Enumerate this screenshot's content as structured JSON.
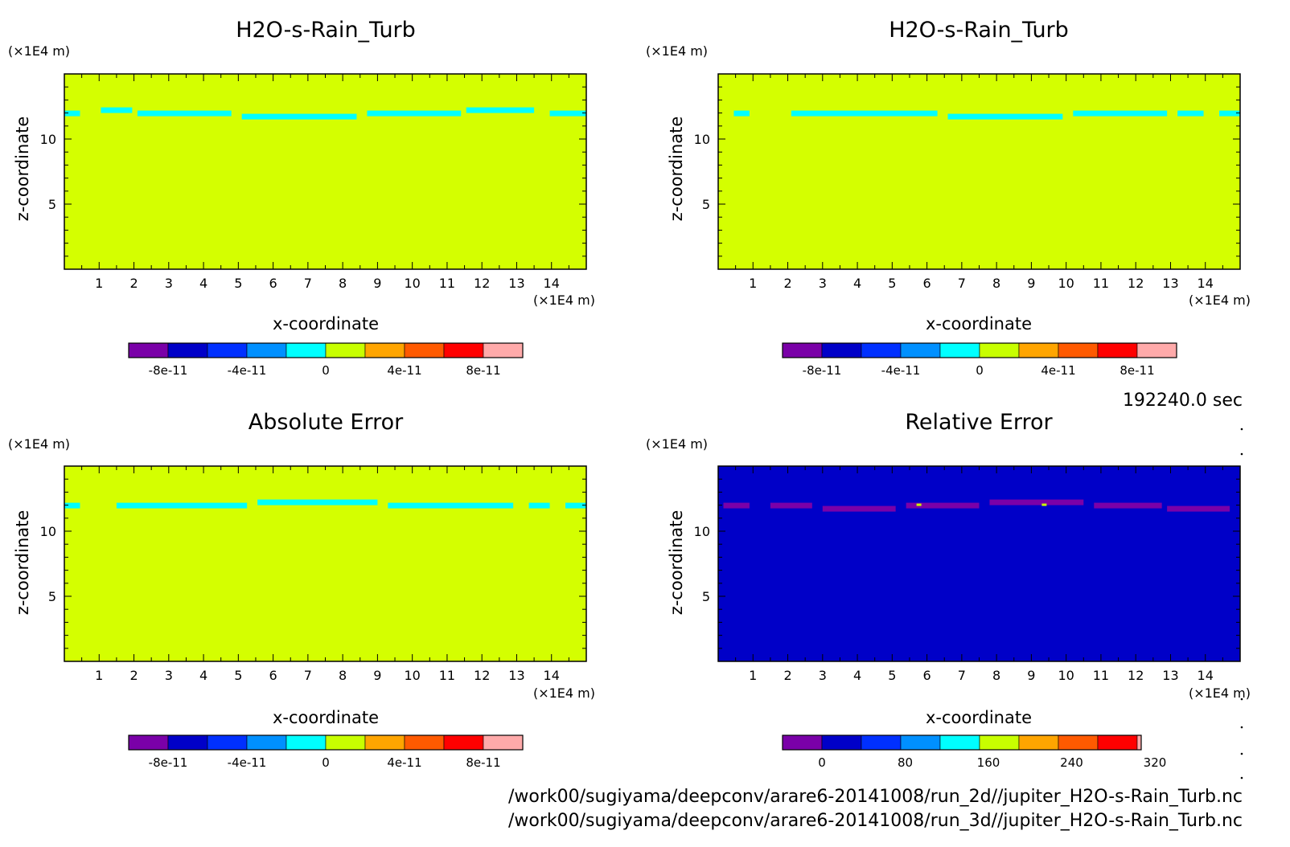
{
  "colors": {
    "background": "#d4ff00",
    "cloud": "#00ffff",
    "relative_background": "#0000c8",
    "relative_cloud": "#7a00a8",
    "colorbar": [
      "#7a00a8",
      "#0000c8",
      "#0030ff",
      "#0090ff",
      "#00ffff",
      "#c8ff00",
      "#ffa500",
      "#ff5a00",
      "#ff0000",
      "#ffaaaa"
    ]
  },
  "chart_data": [
    {
      "type": "heatmap",
      "title": "H2O-s-Rain_Turb",
      "xlabel": "x-coordinate",
      "ylabel": "z-coordinate",
      "xunit": "(×1E4 m)",
      "zunit": "(×1E4 m)",
      "xlim": [
        0,
        15
      ],
      "ylim": [
        0,
        15
      ],
      "xticks": [
        "1",
        "2",
        "3",
        "4",
        "5",
        "6",
        "7",
        "8",
        "9",
        "10",
        "11",
        "12",
        "13",
        "14"
      ],
      "yticks": [
        "5",
        "10"
      ],
      "band_z": 12,
      "colorbar_labels": [
        "-8e-11",
        "-4e-11",
        "0",
        "4e-11",
        "8e-11"
      ]
    },
    {
      "type": "heatmap",
      "title": "H2O-s-Rain_Turb",
      "xlabel": "x-coordinate",
      "ylabel": "z-coordinate",
      "xunit": "(×1E4 m)",
      "zunit": "(×1E4 m)",
      "xlim": [
        0,
        15
      ],
      "ylim": [
        0,
        15
      ],
      "xticks": [
        "1",
        "2",
        "3",
        "4",
        "5",
        "6",
        "7",
        "8",
        "9",
        "10",
        "11",
        "12",
        "13",
        "14"
      ],
      "yticks": [
        "5",
        "10"
      ],
      "band_z": 12,
      "colorbar_labels": [
        "-8e-11",
        "-4e-11",
        "0",
        "4e-11",
        "8e-11"
      ]
    },
    {
      "type": "heatmap",
      "title": "Absolute Error",
      "xlabel": "x-coordinate",
      "ylabel": "z-coordinate",
      "xunit": "(×1E4 m)",
      "zunit": "(×1E4 m)",
      "xlim": [
        0,
        15
      ],
      "ylim": [
        0,
        15
      ],
      "xticks": [
        "1",
        "2",
        "3",
        "4",
        "5",
        "6",
        "7",
        "8",
        "9",
        "10",
        "11",
        "12",
        "13",
        "14"
      ],
      "yticks": [
        "5",
        "10"
      ],
      "band_z": 12,
      "colorbar_labels": [
        "-8e-11",
        "-4e-11",
        "0",
        "4e-11",
        "8e-11"
      ]
    },
    {
      "type": "heatmap",
      "title": "Relative Error",
      "xlabel": "x-coordinate",
      "ylabel": "z-coordinate",
      "xunit": "(×1E4 m)",
      "zunit": "(×1E4 m)",
      "xlim": [
        0,
        15
      ],
      "ylim": [
        0,
        15
      ],
      "xticks": [
        "1",
        "2",
        "3",
        "4",
        "5",
        "6",
        "7",
        "8",
        "9",
        "10",
        "11",
        "12",
        "13",
        "14"
      ],
      "yticks": [
        "5",
        "10"
      ],
      "band_z": 12,
      "colorbar_labels": [
        "0",
        "80",
        "160",
        "240",
        "320"
      ]
    }
  ],
  "time_label": "192240.0 sec",
  "paths": [
    "/work00/sugiyama/deepconv/arare6-20141008/run_2d//jupiter_H2O-s-Rain_Turb.nc",
    "/work00/sugiyama/deepconv/arare6-20141008/run_3d//jupiter_H2O-s-Rain_Turb.nc"
  ]
}
